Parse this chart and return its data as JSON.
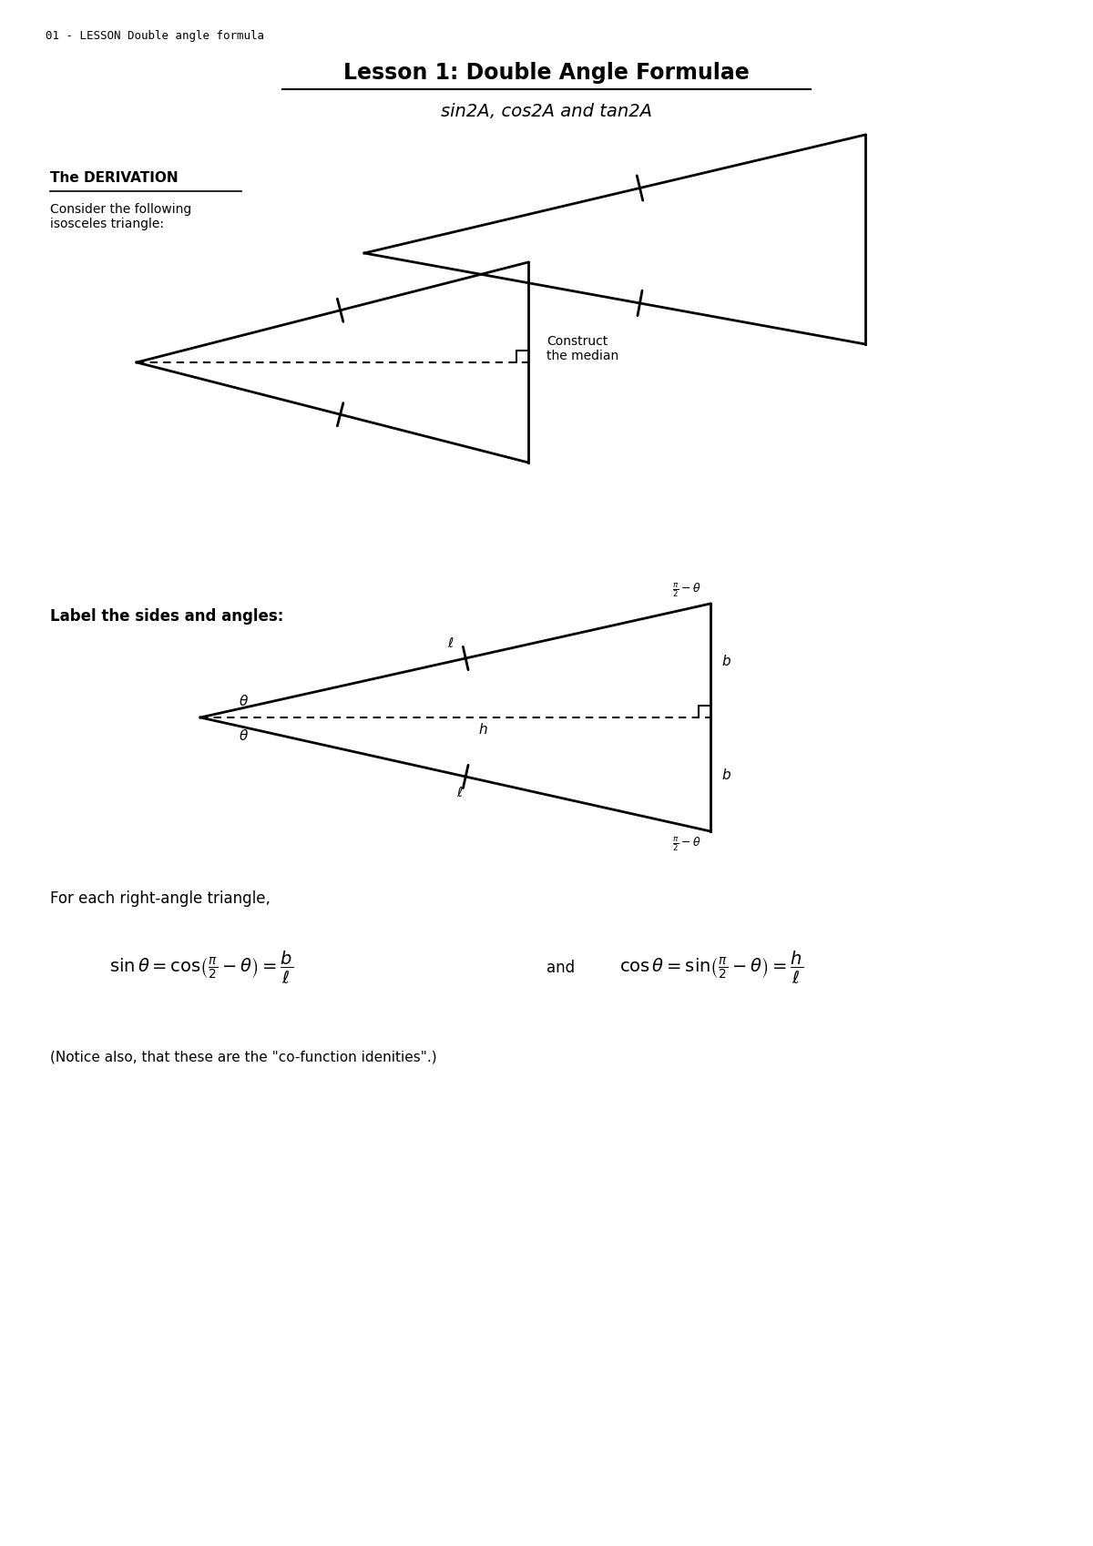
{
  "page_label": "01 - LESSON Double angle formula",
  "title": "Lesson 1: Double Angle Formulae",
  "subtitle": "sin2A, cos2A and tan2A",
  "section_title": "The DERIVATION",
  "consider_text": "Consider the following\nisosceles triangle:",
  "construct_text": "Construct\nthe median",
  "label_text": "Label the sides and angles:",
  "right_angle_text": "For each right-angle triangle,",
  "cofunction_text": "(Notice also, that these are the \"co-function idenities\".)",
  "bg_color": "#ffffff",
  "line_color": "#000000",
  "dashed_color": "#000000"
}
